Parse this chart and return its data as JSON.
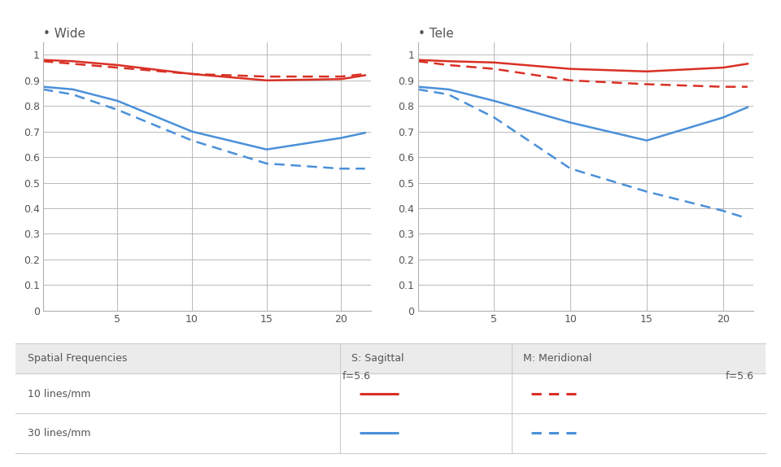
{
  "wide_S10": [
    [
      0,
      0.98
    ],
    [
      2,
      0.975
    ],
    [
      5,
      0.96
    ],
    [
      10,
      0.925
    ],
    [
      15,
      0.9
    ],
    [
      20,
      0.905
    ],
    [
      21.6,
      0.92
    ]
  ],
  "wide_M10": [
    [
      0,
      0.975
    ],
    [
      2,
      0.965
    ],
    [
      5,
      0.95
    ],
    [
      10,
      0.925
    ],
    [
      15,
      0.915
    ],
    [
      20,
      0.915
    ],
    [
      21.6,
      0.925
    ]
  ],
  "wide_S30": [
    [
      0,
      0.875
    ],
    [
      2,
      0.865
    ],
    [
      5,
      0.82
    ],
    [
      10,
      0.7
    ],
    [
      15,
      0.63
    ],
    [
      20,
      0.675
    ],
    [
      21.6,
      0.695
    ]
  ],
  "wide_M30": [
    [
      0,
      0.865
    ],
    [
      2,
      0.845
    ],
    [
      5,
      0.785
    ],
    [
      10,
      0.665
    ],
    [
      15,
      0.575
    ],
    [
      20,
      0.555
    ],
    [
      21.6,
      0.555
    ]
  ],
  "tele_S10": [
    [
      0,
      0.98
    ],
    [
      2,
      0.975
    ],
    [
      5,
      0.97
    ],
    [
      10,
      0.945
    ],
    [
      15,
      0.935
    ],
    [
      20,
      0.95
    ],
    [
      21.6,
      0.965
    ]
  ],
  "tele_M10": [
    [
      0,
      0.975
    ],
    [
      2,
      0.96
    ],
    [
      5,
      0.945
    ],
    [
      10,
      0.9
    ],
    [
      15,
      0.885
    ],
    [
      20,
      0.875
    ],
    [
      21.6,
      0.875
    ]
  ],
  "tele_S30": [
    [
      0,
      0.875
    ],
    [
      2,
      0.865
    ],
    [
      5,
      0.82
    ],
    [
      10,
      0.735
    ],
    [
      15,
      0.665
    ],
    [
      20,
      0.755
    ],
    [
      21.6,
      0.795
    ]
  ],
  "tele_M30": [
    [
      0,
      0.865
    ],
    [
      2,
      0.845
    ],
    [
      5,
      0.755
    ],
    [
      10,
      0.555
    ],
    [
      15,
      0.465
    ],
    [
      20,
      0.39
    ],
    [
      21.6,
      0.36
    ]
  ],
  "red_color": "#d93025",
  "blue_color": "#4a90d9",
  "grid_color": "#b0b0b0",
  "bg_color": "#ffffff",
  "table_header_bg": "#ebebeb",
  "table_row_bg": "#ffffff",
  "table_line_color": "#cccccc",
  "text_color": "#555555",
  "wide_label": "• Wide",
  "tele_label": "• Tele",
  "f_label": "f=5.6",
  "ytick_labels": [
    "0",
    "0.1",
    "0.2",
    "0.3",
    "0.4",
    "0.5",
    "0.6",
    "0.7",
    "0.8",
    "0.9",
    "1"
  ],
  "ytick_vals": [
    0,
    0.1,
    0.2,
    0.3,
    0.4,
    0.5,
    0.6,
    0.7,
    0.8,
    0.9,
    1.0
  ],
  "xtick_vals": [
    5,
    10,
    15,
    20
  ],
  "xlim": [
    0,
    22
  ],
  "ylim": [
    0,
    1.05
  ]
}
